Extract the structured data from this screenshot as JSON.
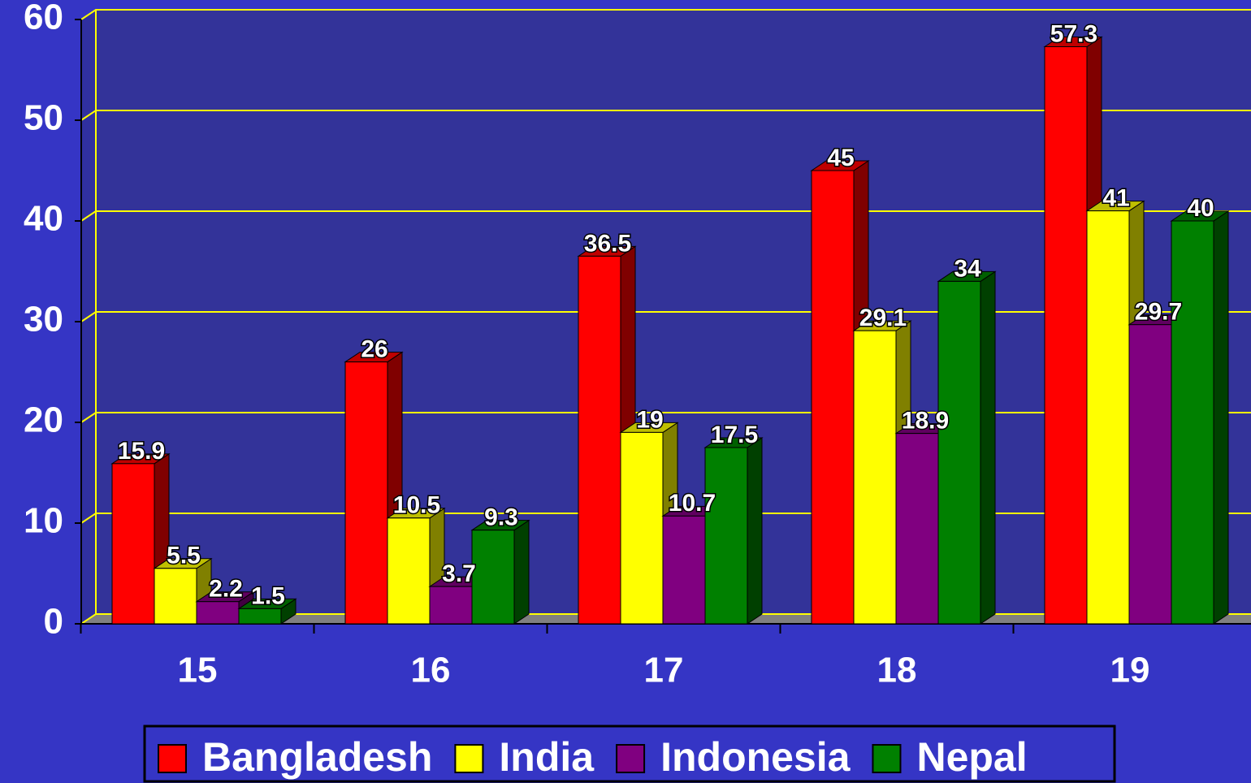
{
  "chart_data": {
    "type": "bar3d",
    "categories": [
      "15",
      "16",
      "17",
      "18",
      "19"
    ],
    "series": [
      {
        "name": "Bangladesh",
        "color": "#ff0000",
        "values": [
          15.9,
          26,
          36.5,
          45,
          57.3
        ]
      },
      {
        "name": "India",
        "color": "#ffff00",
        "values": [
          5.5,
          10.5,
          19,
          29.1,
          41
        ]
      },
      {
        "name": "Indonesia",
        "color": "#800080",
        "values": [
          2.2,
          3.7,
          10.7,
          18.9,
          29.7
        ]
      },
      {
        "name": "Nepal",
        "color": "#008000",
        "values": [
          1.5,
          9.3,
          17.5,
          34,
          40
        ]
      }
    ],
    "ylim": [
      0,
      60
    ],
    "yticks": [
      0,
      10,
      20,
      30,
      40,
      50,
      60
    ],
    "grid": true,
    "legend": "bottom"
  }
}
